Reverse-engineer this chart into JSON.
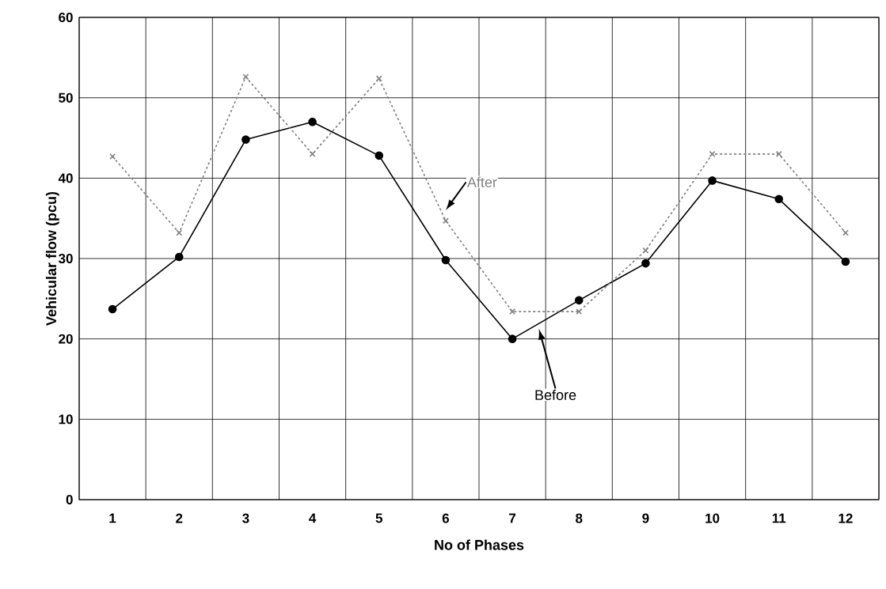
{
  "chart_data": {
    "type": "line",
    "xlabel": "No of Phases",
    "ylabel": "Vehicular flow (pcu)",
    "categories": [
      "1",
      "2",
      "3",
      "4",
      "5",
      "6",
      "7",
      "8",
      "9",
      "10",
      "11",
      "12"
    ],
    "series": [
      {
        "name": "Before",
        "color": "#000000",
        "marker": "circle",
        "line_style": "solid",
        "values": [
          23.7,
          30.2,
          44.8,
          47,
          42.8,
          29.8,
          20,
          24.8,
          29.4,
          39.7,
          37.4,
          29.6
        ]
      },
      {
        "name": "After",
        "color": "#808080",
        "marker": "cross",
        "line_style": "dashed",
        "values": [
          42.7,
          33.2,
          52.6,
          43,
          52.4,
          34.7,
          23.4,
          23.4,
          31,
          43,
          43,
          33.2
        ]
      }
    ],
    "ylim": [
      0,
      60
    ],
    "yticks": [
      0,
      10,
      20,
      30,
      40,
      50,
      60
    ],
    "grid": true,
    "legend": false
  }
}
